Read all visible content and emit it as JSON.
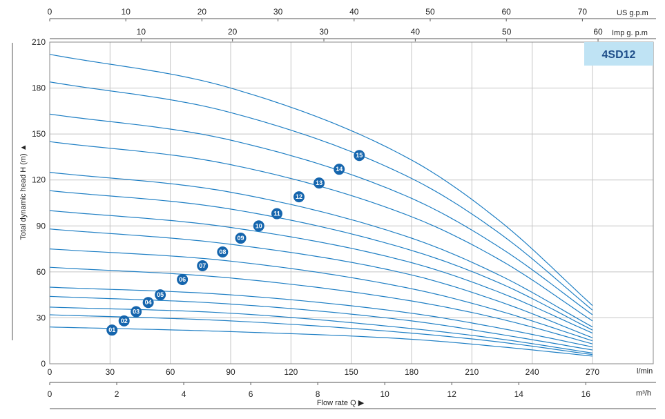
{
  "chart_data": {
    "type": "line",
    "model": "4SD12",
    "ylabel": "Total dynamic head H (m) ▲",
    "xlabel": "Flow rate Q ▶",
    "x_units": {
      "us_gpm": "US g.p.m",
      "imp_gpm": "Imp g. p.m",
      "l_min": "l/min",
      "m3_h": "m³/h"
    },
    "x_ticks": {
      "us_gpm": [
        "0",
        "10",
        "20",
        "30",
        "40",
        "50",
        "60",
        "70"
      ],
      "imp_gpm": [
        "10",
        "20",
        "30",
        "40",
        "50",
        "60"
      ],
      "l_min": [
        "0",
        "30",
        "60",
        "90",
        "120",
        "150",
        "180",
        "210",
        "240",
        "270"
      ],
      "m3_h": [
        "0",
        "2",
        "4",
        "6",
        "8",
        "10",
        "12",
        "14",
        "16"
      ]
    },
    "y_ticks": [
      "0",
      "30",
      "60",
      "90",
      "120",
      "150",
      "180",
      "210"
    ],
    "xlim": [
      0,
      270
    ],
    "ylim": [
      0,
      210
    ],
    "grid": true,
    "line_color": "#1f7fc4",
    "badge_color": "#1565ad",
    "model_box_color": "#bfe3f4",
    "series": [
      {
        "name": "01",
        "x": [
          0,
          90,
          180,
          225,
          270
        ],
        "y": [
          24,
          21,
          16,
          11,
          5
        ],
        "label_at": [
          31,
          22
        ]
      },
      {
        "name": "02",
        "x": [
          0,
          90,
          180,
          225,
          270
        ],
        "y": [
          32,
          28,
          20,
          14,
          6
        ],
        "label_at": [
          37,
          28
        ]
      },
      {
        "name": "03",
        "x": [
          0,
          90,
          180,
          225,
          270
        ],
        "y": [
          37,
          33,
          23,
          16,
          7
        ],
        "label_at": [
          43,
          34
        ]
      },
      {
        "name": "04",
        "x": [
          0,
          90,
          180,
          225,
          270
        ],
        "y": [
          44,
          39,
          28,
          19,
          9
        ],
        "label_at": [
          49,
          40
        ]
      },
      {
        "name": "05",
        "x": [
          0,
          90,
          180,
          225,
          270
        ],
        "y": [
          50,
          45,
          33,
          23,
          11
        ],
        "label_at": [
          55,
          45
        ]
      },
      {
        "name": "06",
        "x": [
          0,
          90,
          180,
          225,
          270
        ],
        "y": [
          63,
          56,
          41,
          29,
          13
        ],
        "label_at": [
          66,
          55
        ]
      },
      {
        "name": "07",
        "x": [
          0,
          90,
          180,
          225,
          270
        ],
        "y": [
          75,
          67,
          49,
          34,
          15
        ],
        "label_at": [
          76,
          64
        ]
      },
      {
        "name": "08",
        "x": [
          0,
          90,
          180,
          225,
          270
        ],
        "y": [
          88,
          78,
          58,
          40,
          17
        ],
        "label_at": [
          86,
          73
        ]
      },
      {
        "name": "09",
        "x": [
          0,
          90,
          180,
          225,
          270
        ],
        "y": [
          100,
          89,
          66,
          46,
          20
        ],
        "label_at": [
          95,
          82
        ]
      },
      {
        "name": "10",
        "x": [
          0,
          90,
          180,
          225,
          270
        ],
        "y": [
          113,
          101,
          74,
          52,
          22
        ],
        "label_at": [
          104,
          90
        ]
      },
      {
        "name": "11",
        "x": [
          0,
          90,
          180,
          225,
          270
        ],
        "y": [
          125,
          112,
          82,
          57,
          24
        ],
        "label_at": [
          113,
          98
        ]
      },
      {
        "name": "12",
        "x": [
          0,
          90,
          180,
          225,
          270
        ],
        "y": [
          145,
          130,
          96,
          67,
          28
        ],
        "label_at": [
          124,
          109
        ]
      },
      {
        "name": "13",
        "x": [
          0,
          90,
          180,
          225,
          270
        ],
        "y": [
          163,
          146,
          108,
          75,
          32
        ],
        "label_at": [
          134,
          118
        ]
      },
      {
        "name": "14",
        "x": [
          0,
          90,
          180,
          225,
          270
        ],
        "y": [
          184,
          164,
          121,
          84,
          35
        ],
        "label_at": [
          144,
          127
        ]
      },
      {
        "name": "15",
        "x": [
          0,
          90,
          180,
          225,
          270
        ],
        "y": [
          202,
          180,
          133,
          92,
          38
        ],
        "label_at": [
          154,
          136
        ]
      }
    ]
  }
}
